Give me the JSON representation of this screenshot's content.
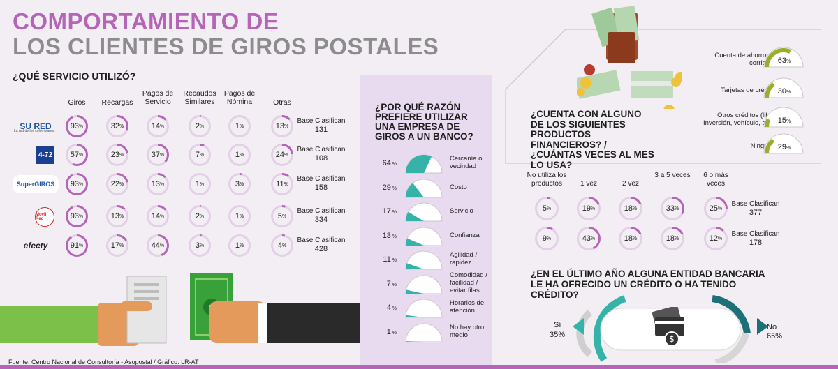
{
  "title_line1": "COMPORTAMIENTO DE",
  "title_line2": "LOS CLIENTES DE GIROS POSTALES",
  "colors": {
    "purple": "#b565b8",
    "teal": "#36b3a8",
    "olive": "#9aad2d",
    "gray": "#8c8c8c"
  },
  "services": {
    "question": "¿QUÉ SERVICIO UTILIZÓ?",
    "columns": [
      "Giros",
      "Recargas",
      "Pagos de Servicio",
      "Recaudos Similares",
      "Pagos de Nómina",
      "Otras"
    ],
    "base_label": "Base Clasifican",
    "rows": [
      {
        "logo": "SU RED",
        "logo_sub": "La red de los colombianos",
        "logo_icon": "sured-logo",
        "values": [
          93,
          32,
          14,
          2,
          1,
          13
        ],
        "base": "131"
      },
      {
        "logo": "4-72",
        "logo_icon": "472-logo",
        "values": [
          57,
          23,
          37,
          7,
          1,
          24
        ],
        "base": "108"
      },
      {
        "logo": "SuperGIROS",
        "logo_icon": "supergiros-logo",
        "values": [
          93,
          22,
          13,
          1,
          3,
          11
        ],
        "base": "158"
      },
      {
        "logo": "Movii Red",
        "logo_icon": "moviired-logo",
        "values": [
          93,
          13,
          14,
          2,
          1,
          5
        ],
        "base": "334"
      },
      {
        "logo": "efecty",
        "logo_icon": "efecty-logo",
        "values": [
          91,
          17,
          44,
          3,
          1,
          4
        ],
        "base": "428"
      }
    ]
  },
  "reasons": {
    "question": "¿POR QUÉ RAZÓN PREFIERE UTILIZAR UNA EMPRESA DE GIROS A UN BANCO?",
    "items": [
      {
        "value": 64,
        "label": "Cercanía o vecindad"
      },
      {
        "value": 29,
        "label": "Costo"
      },
      {
        "value": 17,
        "label": "Servicio"
      },
      {
        "value": 13,
        "label": "Confianza"
      },
      {
        "value": 11,
        "label": "Agilidad / rapidez"
      },
      {
        "value": 7,
        "label": "Comodidad / facilidad / evitar filas"
      },
      {
        "value": 4,
        "label": "Horarios de atención"
      },
      {
        "value": 1,
        "label": "No hay otro medio"
      }
    ]
  },
  "products": {
    "question": "¿CUENTA CON ALGUNO DE LOS SIGUIENTES PRODUCTOS FINANCIEROS? / ¿CUÁNTAS VECES AL MES LO USA?",
    "items": [
      {
        "label": "Cuenta de ahorros o corriente",
        "value": 63
      },
      {
        "label": "Tarjetas de crédito",
        "value": 30
      },
      {
        "label": "Otros créditos (libre Inversión, vehículo, etc.)",
        "value": 15
      },
      {
        "label": "Ninguno",
        "value": 29
      }
    ]
  },
  "frequency": {
    "columns": [
      "No utiliza los productos",
      "1 vez",
      "2 vez",
      "3 a 5 veces",
      "6 o más veces"
    ],
    "base_label": "Base Clasifican",
    "rows": [
      {
        "values": [
          5,
          19,
          18,
          33,
          25
        ],
        "base": "377"
      },
      {
        "values": [
          9,
          43,
          18,
          18,
          12
        ],
        "base": "178"
      }
    ]
  },
  "credit": {
    "question": "¿EN EL ÚLTIMO AÑO ALGUNA ENTIDAD BANCARIA LE HA OFRECIDO UN CRÉDITO O HA TENIDO CRÉDITO?",
    "yes_label": "Sí",
    "yes_value": "35%",
    "no_label": "No",
    "no_value": "65%"
  },
  "footer": "Fuente: Centro Nacional de Consultoría - Asopostal / Gráfico: LR-AT"
}
